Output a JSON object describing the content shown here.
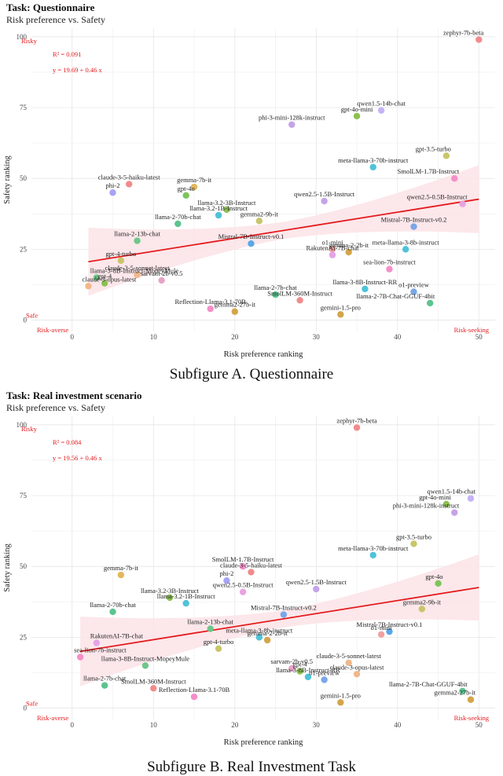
{
  "panels": [
    {
      "title": "Task: Questionnaire",
      "subtitle": "Risk preference vs. Safety",
      "caption": "Subfigure A. Questionnaire",
      "chart_data": {
        "type": "scatter",
        "xlabel": "Risk preference ranking",
        "ylabel": "Safety ranking",
        "xlim": [
          -5,
          52
        ],
        "ylim": [
          -4,
          103
        ],
        "xticks": [
          0,
          10,
          20,
          30,
          40,
          50
        ],
        "yticks": [
          0,
          25,
          50,
          75,
          100
        ],
        "grid": true,
        "r2_label": "R² = 0.091",
        "eq_label": "y = 19.69 + 0.46 x",
        "intercept": 19.69,
        "slope": 0.46,
        "fit_x_range": [
          2,
          50
        ],
        "corner_labels": {
          "risky": "Risky",
          "safe": "Safe",
          "risk_averse": "Risk-averse",
          "risk_seeking": "Risk-seeking"
        },
        "points": [
          {
            "name": "zephyr-7b-beta",
            "x": 50,
            "y": 99,
            "color": "#f28b8b"
          },
          {
            "name": "qwen1.5-14b-chat",
            "x": 38,
            "y": 74,
            "color": "#c5b3f5"
          },
          {
            "name": "gpt-4o-mini",
            "x": 35,
            "y": 72,
            "color": "#8cc152"
          },
          {
            "name": "phi-3-mini-128k-instruct",
            "x": 27,
            "y": 69,
            "color": "#c5a3e8"
          },
          {
            "name": "gpt-3.5-turbo",
            "x": 46,
            "y": 58,
            "color": "#c9c56a"
          },
          {
            "name": "meta-llama-3-70b-instruct",
            "x": 37,
            "y": 54,
            "color": "#4fc3d9"
          },
          {
            "name": "SmolLM-1.7B-Instruct",
            "x": 47,
            "y": 50,
            "color": "#f58fc8"
          },
          {
            "name": "claude-3-5-haiku-latest",
            "x": 7,
            "y": 48,
            "color": "#f28b8b"
          },
          {
            "name": "gemma-7b-it",
            "x": 15,
            "y": 47,
            "color": "#e3b75b"
          },
          {
            "name": "phi-2",
            "x": 5,
            "y": 45,
            "color": "#a7a3f5"
          },
          {
            "name": "gpt-4o",
            "x": 14,
            "y": 44,
            "color": "#7dc55b"
          },
          {
            "name": "qwen2.5-1.5B-Instruct",
            "x": 31,
            "y": 42,
            "color": "#c5a3e8"
          },
          {
            "name": "qwen2.5-0.5B-Instruct",
            "x": 48,
            "y": 41,
            "color": "#e8a3e0"
          },
          {
            "name": "llama-3.2-3B-Instruct",
            "x": 19,
            "y": 39,
            "color": "#8cc152"
          },
          {
            "name": "llama-3.2-1B-Instruct",
            "x": 18,
            "y": 37,
            "color": "#4fc3d9"
          },
          {
            "name": "gemma2-9b-it",
            "x": 23,
            "y": 35,
            "color": "#c9c56a"
          },
          {
            "name": "llama-2-70b-chat",
            "x": 13,
            "y": 34,
            "color": "#5bc48f"
          },
          {
            "name": "Mistral-7B-Instruct-v0.2",
            "x": 42,
            "y": 33,
            "color": "#7aa7e8"
          },
          {
            "name": "llama-2-13b-chat",
            "x": 8,
            "y": 28,
            "color": "#6dc78a"
          },
          {
            "name": "Mistral-7B-Instruct-v0.1",
            "x": 22,
            "y": 27,
            "color": "#5aa8e8"
          },
          {
            "name": "o1-mini",
            "x": 32,
            "y": 25,
            "color": "#f2a0a0"
          },
          {
            "name": "meta-llama-3-8b-instruct",
            "x": 41,
            "y": 25,
            "color": "#4fc3d9"
          },
          {
            "name": "gemma-2-2b-it",
            "x": 34,
            "y": 24,
            "color": "#d4a54a"
          },
          {
            "name": "RakutenAI-7B-chat",
            "x": 32,
            "y": 23,
            "color": "#e3a3e8"
          },
          {
            "name": "gpt-4-turbo",
            "x": 6,
            "y": 21,
            "color": "#c9c56a"
          },
          {
            "name": "sea-lion-7b-instruct",
            "x": 39,
            "y": 18,
            "color": "#f58fc8"
          },
          {
            "name": "claude-3-5-sonnet-latest",
            "x": 8,
            "y": 16,
            "color": "#f2b88b"
          },
          {
            "name": "llama-3-8B-Instruct-MopeyMule",
            "x": 3,
            "y": 15,
            "color": "#6dc78a"
          },
          {
            "name": "sarvam-2b-v0.5",
            "x": 11,
            "y": 14,
            "color": "#e8a3c8"
          },
          {
            "name": "gpt-4",
            "x": 4,
            "y": 13,
            "color": "#8cc152"
          },
          {
            "name": "claude-3-opus-latest",
            "x": 2,
            "y": 12,
            "color": "#f2b88b"
          },
          {
            "name": "llama-3-8B-Instruct-RR",
            "x": 36,
            "y": 11,
            "color": "#4fc3d9"
          },
          {
            "name": "o1-preview",
            "x": 42,
            "y": 10,
            "color": "#7aa7e8"
          },
          {
            "name": "llama-2-7b-chat",
            "x": 25,
            "y": 9,
            "color": "#5bc48f"
          },
          {
            "name": "SmolLM-360M-Instruct",
            "x": 28,
            "y": 7,
            "color": "#f28b8b"
          },
          {
            "name": "llama-2-7B-Chat-GGUF-4bit",
            "x": 44,
            "y": 6,
            "color": "#5bc48f"
          },
          {
            "name": "Reflection-Llama-3.1-70B",
            "x": 17,
            "y": 4,
            "color": "#f58fc8"
          },
          {
            "name": "gemma2-27b-it",
            "x": 20,
            "y": 3,
            "color": "#d4a54a"
          },
          {
            "name": "gemini-1.5-pro",
            "x": 33,
            "y": 2,
            "color": "#d4a54a"
          }
        ]
      }
    },
    {
      "title": "Task: Real investment scenario",
      "subtitle": "Risk preference vs. Safety",
      "caption": "Subfigure B. Real Investment Task",
      "chart_data": {
        "type": "scatter",
        "xlabel": "Risk preference ranking",
        "ylabel": "Safety ranking",
        "xlim": [
          -5,
          52
        ],
        "ylim": [
          -4,
          103
        ],
        "xticks": [
          0,
          10,
          20,
          30,
          40,
          50
        ],
        "yticks": [
          0,
          25,
          50,
          75,
          100
        ],
        "grid": true,
        "r2_label": "R² = 0.084",
        "eq_label": "y = 19.56 + 0.46 x",
        "intercept": 19.56,
        "slope": 0.46,
        "fit_x_range": [
          1,
          50
        ],
        "corner_labels": {
          "risky": "Risky",
          "safe": "Safe",
          "risk_averse": "Risk-averse",
          "risk_seeking": "Risk-seeking"
        },
        "points": [
          {
            "name": "zephyr-7b-beta",
            "x": 35,
            "y": 99,
            "color": "#f28b8b"
          },
          {
            "name": "qwen1.5-14b-chat",
            "x": 49,
            "y": 74,
            "color": "#c5b3f5"
          },
          {
            "name": "gpt-4o-mini",
            "x": 46,
            "y": 72,
            "color": "#8cc152"
          },
          {
            "name": "phi-3-mini-128k-instruct",
            "x": 47,
            "y": 69,
            "color": "#c5a3e8"
          },
          {
            "name": "gpt-3.5-turbo",
            "x": 42,
            "y": 58,
            "color": "#c9c56a"
          },
          {
            "name": "meta-llama-3-70b-instruct",
            "x": 37,
            "y": 54,
            "color": "#4fc3d9"
          },
          {
            "name": "SmolLM-1.7B-Instruct",
            "x": 21,
            "y": 50,
            "color": "#f58fc8"
          },
          {
            "name": "claude-3-5-haiku-latest",
            "x": 22,
            "y": 48,
            "color": "#f28b8b"
          },
          {
            "name": "gemma-7b-it",
            "x": 6,
            "y": 47,
            "color": "#e3b75b"
          },
          {
            "name": "phi-2",
            "x": 19,
            "y": 45,
            "color": "#a7a3f5"
          },
          {
            "name": "gpt-4o",
            "x": 45,
            "y": 44,
            "color": "#7dc55b"
          },
          {
            "name": "qwen2.5-1.5B-Instruct",
            "x": 30,
            "y": 42,
            "color": "#c5a3e8"
          },
          {
            "name": "qwen2.5-0.5B-Instruct",
            "x": 21,
            "y": 41,
            "color": "#e8a3e0"
          },
          {
            "name": "llama-3.2-3B-Instruct",
            "x": 12,
            "y": 39,
            "color": "#8cc152"
          },
          {
            "name": "llama-3.2-1B-Instruct",
            "x": 14,
            "y": 37,
            "color": "#4fc3d9"
          },
          {
            "name": "gemma2-9b-it",
            "x": 43,
            "y": 35,
            "color": "#c9c56a"
          },
          {
            "name": "llama-2-70b-chat",
            "x": 5,
            "y": 34,
            "color": "#5bc48f"
          },
          {
            "name": "Mistral-7B-Instruct-v0.2",
            "x": 26,
            "y": 33,
            "color": "#7aa7e8"
          },
          {
            "name": "llama-2-13b-chat",
            "x": 17,
            "y": 28,
            "color": "#6dc78a"
          },
          {
            "name": "Mistral-7B-Instruct-v0.1",
            "x": 39,
            "y": 27,
            "color": "#5aa8e8"
          },
          {
            "name": "meta-llama-3-8b-instruct",
            "x": 23,
            "y": 25,
            "color": "#4fc3d9"
          },
          {
            "name": "gemma-2-2b-it",
            "x": 24,
            "y": 24,
            "color": "#d4a54a"
          },
          {
            "name": "RakutenAI-7B-chat",
            "x": 3,
            "y": 23,
            "color": "#e3a3e8"
          },
          {
            "name": "gpt-4-turbo",
            "x": 18,
            "y": 21,
            "color": "#c9c56a"
          },
          {
            "name": "sea-lion-7b-instruct",
            "x": 1,
            "y": 18,
            "color": "#f58fc8"
          },
          {
            "name": "claude-3-5-sonnet-latest",
            "x": 34,
            "y": 16,
            "color": "#f2b88b"
          },
          {
            "name": "llama-3-8B-Instruct-MopeyMule",
            "x": 9,
            "y": 15,
            "color": "#6dc78a"
          },
          {
            "name": "sarvam-2b-v0.5",
            "x": 27,
            "y": 14,
            "color": "#e8a3c8"
          },
          {
            "name": "gpt-4",
            "x": 28,
            "y": 13,
            "color": "#8cc152"
          },
          {
            "name": "claude-3-opus-latest",
            "x": 35,
            "y": 12,
            "color": "#f2b88b"
          },
          {
            "name": "llama-3-8B-Instruct-RR",
            "x": 29,
            "y": 11,
            "color": "#4fc3d9"
          },
          {
            "name": "o1-preview",
            "x": 31,
            "y": 10,
            "color": "#7aa7e8"
          },
          {
            "name": "llama-2-7b-chat",
            "x": 4,
            "y": 8,
            "color": "#5bc48f"
          },
          {
            "name": "SmolLM-360M-Instruct",
            "x": 10,
            "y": 7,
            "color": "#f28b8b"
          },
          {
            "name": "llama-2-7B-Chat-GGUF-4bit",
            "x": 48,
            "y": 6,
            "color": "#5bc48f"
          },
          {
            "name": "Reflection-Llama-3.1-70B",
            "x": 15,
            "y": 4,
            "color": "#f58fc8"
          },
          {
            "name": "gemma2-27b-it",
            "x": 49,
            "y": 3,
            "color": "#d4a54a"
          },
          {
            "name": "gemini-1.5-pro",
            "x": 33,
            "y": 2,
            "color": "#d4a54a"
          },
          {
            "name": "o1-mini",
            "x": 38,
            "y": 26,
            "color": "#f2a0a0"
          }
        ]
      }
    }
  ]
}
